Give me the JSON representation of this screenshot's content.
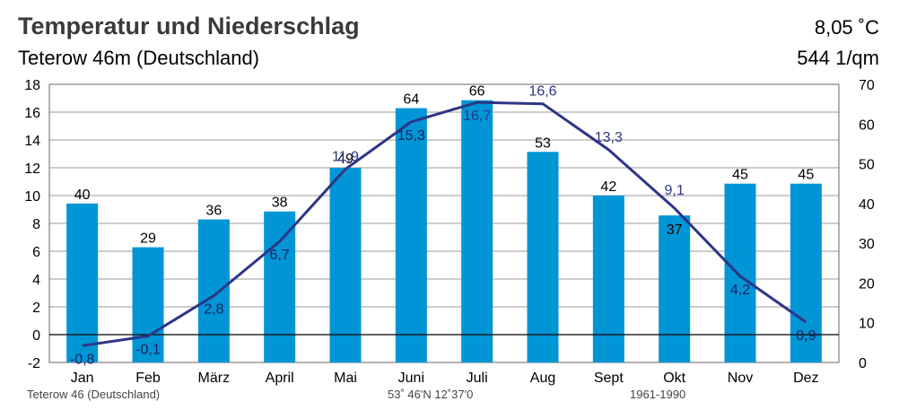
{
  "header": {
    "title": "Temperatur und Niederschlag",
    "subtitle": "Teterow 46m (Deutschland)",
    "mean_temperature": "8,05 ˚C",
    "annual_precipitation": "544 1/qm"
  },
  "footer": {
    "station": "Teterow 46 (Deutschland)",
    "coordinates": "53˚ 46'N 12˚37'0",
    "period": "1961-1990"
  },
  "colors": {
    "bar": "#0096d6",
    "line": "#2e3586",
    "grid": "#999999",
    "zero_line": "#000000"
  },
  "chart_data": {
    "type": "bar",
    "categories": [
      "Jan",
      "Feb",
      "März",
      "April",
      "Mai",
      "Juni",
      "Juli",
      "Aug",
      "Sept",
      "Okt",
      "Nov",
      "Dez"
    ],
    "series": [
      {
        "type": "bar",
        "axis": "right",
        "values": [
          40,
          29,
          36,
          38,
          49,
          64,
          66,
          53,
          42,
          37,
          45,
          45
        ],
        "labels": [
          "40",
          "29",
          "36",
          "38",
          "49",
          "64",
          "66",
          "53",
          "42",
          "37",
          "45",
          "45"
        ]
      },
      {
        "type": "line",
        "axis": "left",
        "values": [
          -0.8,
          -0.1,
          2.8,
          6.7,
          11.9,
          15.3,
          16.7,
          16.6,
          13.3,
          9.1,
          4.2,
          0.9
        ],
        "labels": [
          "-0,8",
          "-0,1",
          "2,8",
          "6,7",
          "11,9",
          "15,3",
          "16,7",
          "16,6",
          "13,3",
          "9,1",
          "4,2",
          "0,9"
        ]
      }
    ],
    "left_axis": {
      "min": -2,
      "max": 18,
      "step": 2,
      "ticks": [
        "-2",
        "0",
        "2",
        "4",
        "6",
        "8",
        "10",
        "12",
        "14",
        "16",
        "18"
      ]
    },
    "right_axis": {
      "min": 0,
      "max": 70,
      "step": 10,
      "ticks": [
        "0",
        "10",
        "20",
        "30",
        "40",
        "50",
        "60",
        "70"
      ]
    },
    "grid": true
  }
}
